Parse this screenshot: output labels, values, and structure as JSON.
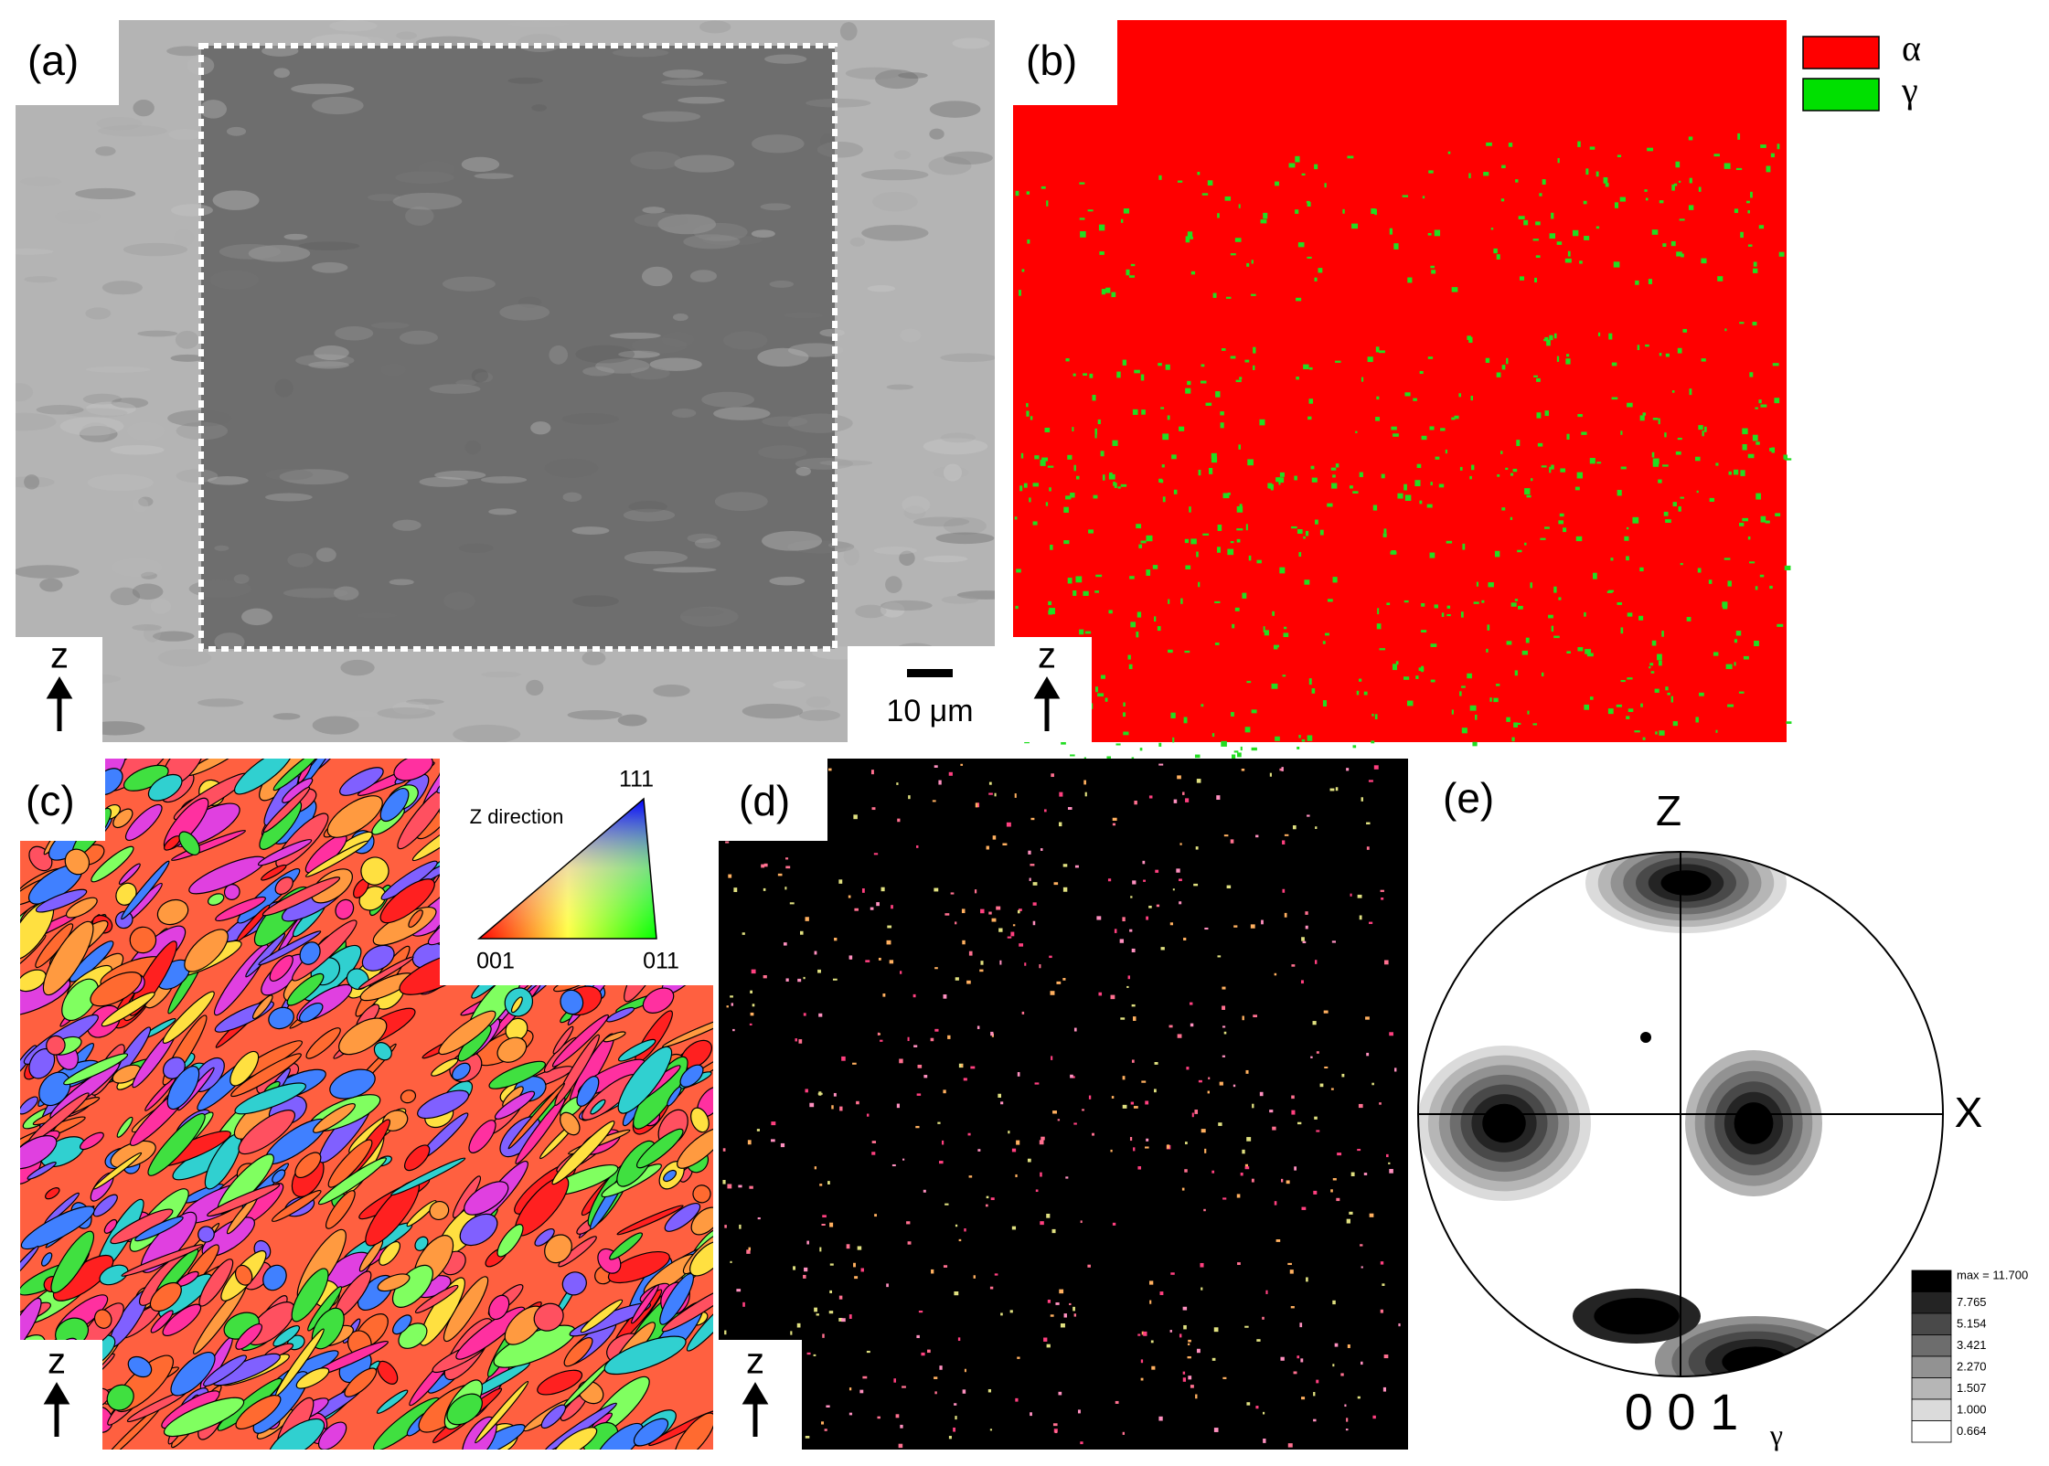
{
  "panels": {
    "a": {
      "label": "(a)",
      "axis": "z",
      "scale_bar": "10 μm"
    },
    "b": {
      "label": "(b)",
      "axis": "z",
      "legend": [
        {
          "label": "α",
          "color": "#ff0000"
        },
        {
          "label": "γ",
          "color": "#00e000"
        }
      ]
    },
    "c": {
      "label": "(c)",
      "axis": "z",
      "ipf_title": "Z direction",
      "ipf_corners": [
        "111",
        "001",
        "011"
      ]
    },
    "d": {
      "label": "(d)",
      "axis": "z"
    },
    "e": {
      "label": "(e)",
      "top": "Z",
      "right": "X",
      "bottom": "0 0 1",
      "subscript": "γ",
      "contour_levels": [
        "max = 11.700",
        "7.765",
        "5.154",
        "3.421",
        "2.270",
        "1.507",
        "1.000",
        "0.664"
      ]
    }
  }
}
